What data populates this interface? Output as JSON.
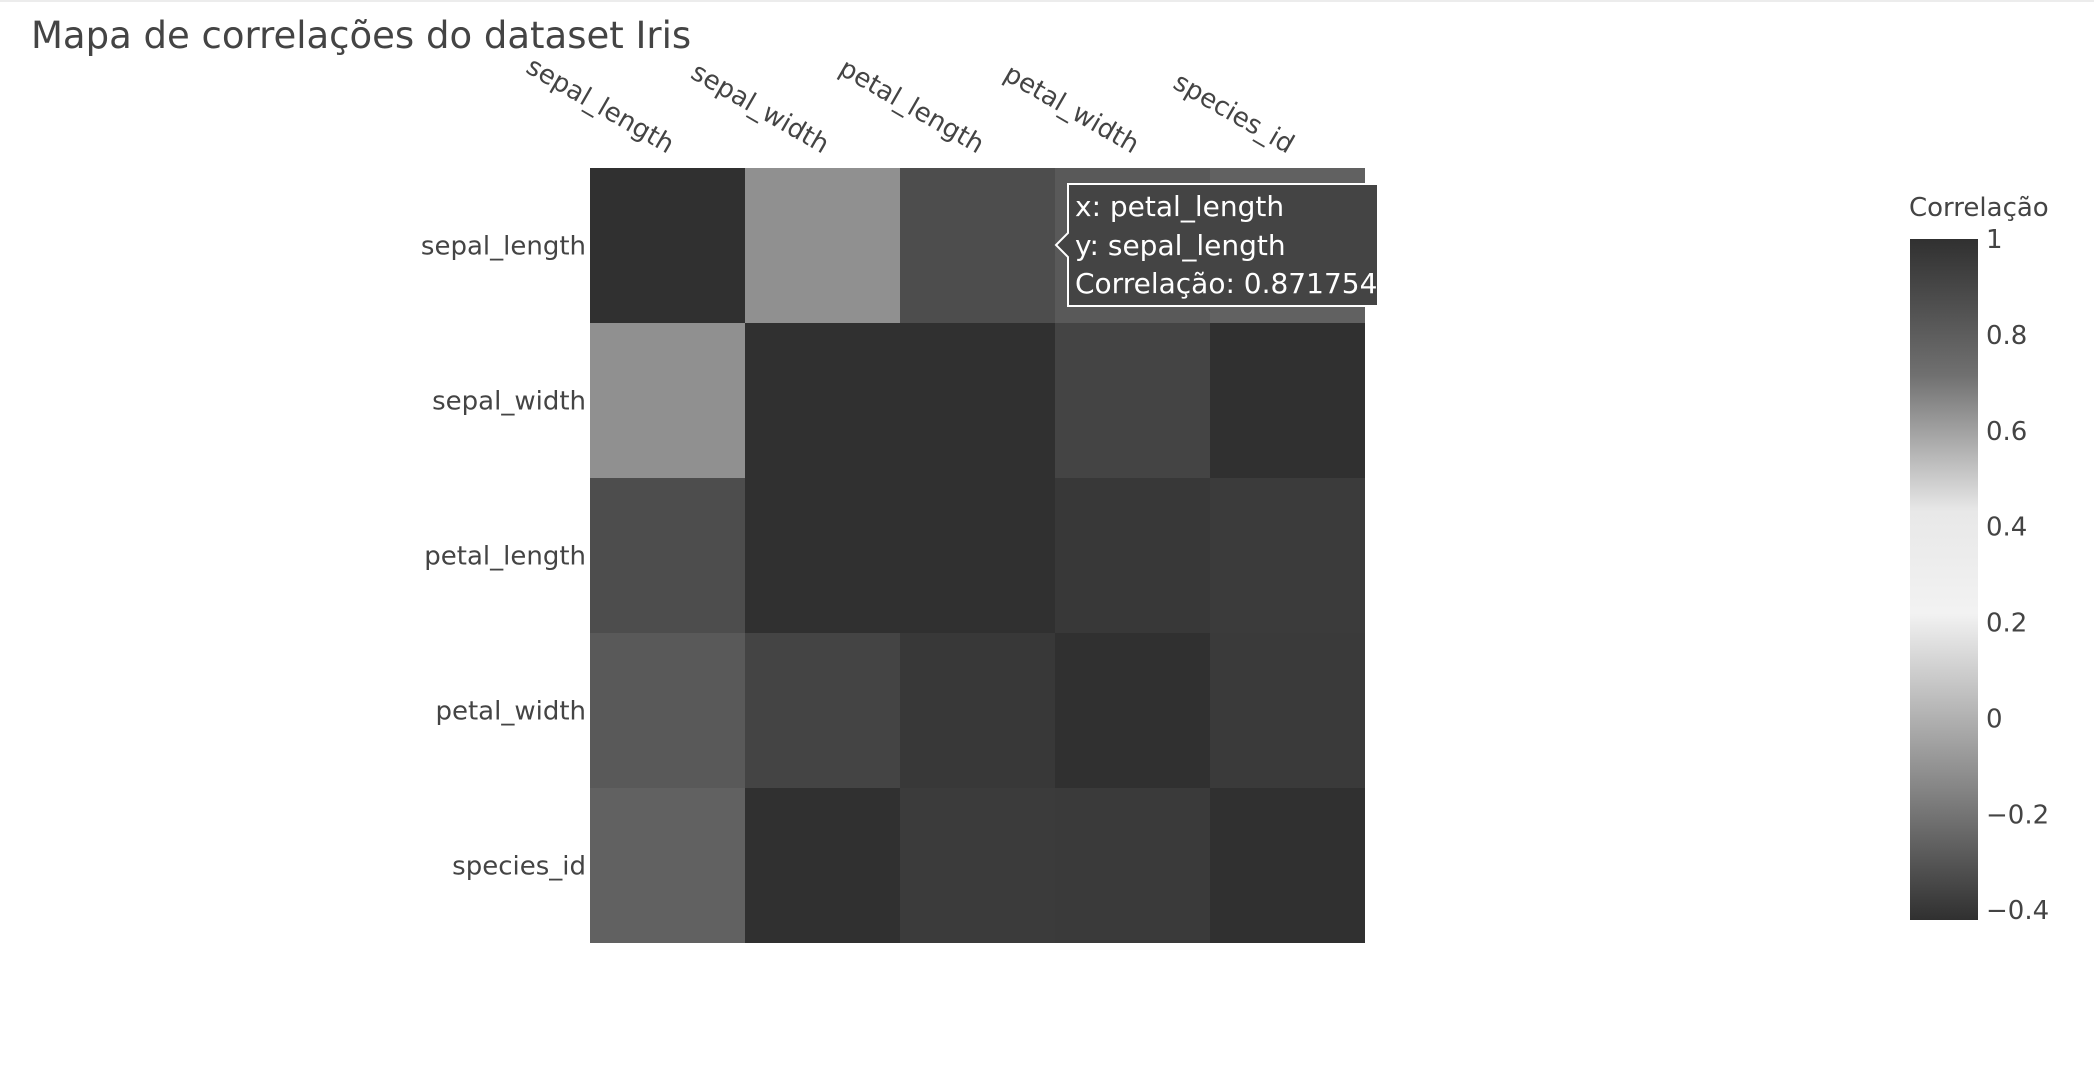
{
  "page": {
    "title": "Mapa de correlações do dataset Iris"
  },
  "chart_data": {
    "type": "heatmap",
    "title": "Mapa de correlações do dataset Iris",
    "x_categories": [
      "sepal_length",
      "sepal_width",
      "petal_length",
      "petal_width",
      "species_id"
    ],
    "y_categories": [
      "sepal_length",
      "sepal_width",
      "petal_length",
      "petal_width",
      "species_id"
    ],
    "z": [
      [
        1.0,
        -0.1093692,
        0.8717542,
        0.8179536,
        0.7829609
      ],
      [
        -0.1093692,
        1.0,
        -0.4205161,
        -0.3565441,
        -0.4194462
      ],
      [
        0.8717542,
        -0.4205161,
        1.0,
        0.9627571,
        0.9490425
      ],
      [
        0.8179536,
        -0.3565441,
        0.9627571,
        1.0,
        0.9564638
      ],
      [
        0.7829609,
        -0.4194462,
        0.9490425,
        0.9564638,
        1.0
      ]
    ],
    "colorbar": {
      "title": "Correlação",
      "range": [
        -0.4205161,
        1.0
      ],
      "tickvals": [
        1,
        0.8,
        0.6,
        0.4,
        0.2,
        0,
        -0.2,
        -0.4
      ],
      "ticktext": [
        "1",
        "0.8",
        "0.6",
        "0.4",
        "0.2",
        "0",
        "−0.2",
        "−0.4"
      ],
      "colorscale": [
        [
          0.0,
          "#303030"
        ],
        [
          0.2,
          "#888888"
        ],
        [
          0.45,
          "#f2f2f2"
        ],
        [
          0.6,
          "#e8e8e8"
        ],
        [
          0.8,
          "#707070"
        ],
        [
          1.0,
          "#303030"
        ]
      ]
    },
    "x_axis_side": "top",
    "x_tick_angle": 30,
    "hover": {
      "x_label": "x: petal_length",
      "y_label": "y: sepal_length",
      "value_label": "Correlação: 0.8717542"
    }
  }
}
